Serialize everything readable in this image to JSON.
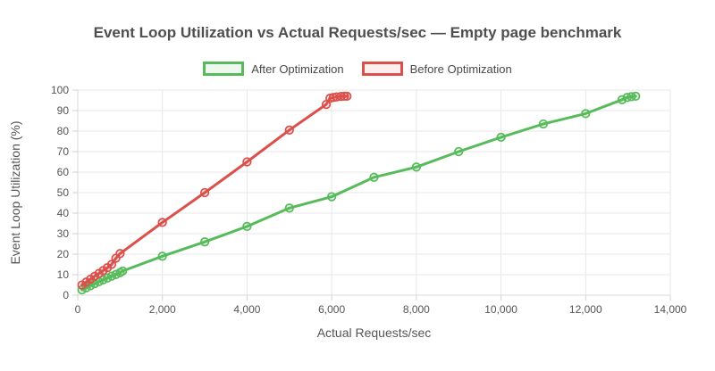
{
  "chart_data": {
    "type": "line",
    "title": "Event Loop Utilization vs Actual Requests/sec — Empty page benchmark",
    "xlabel": "Actual Requests/sec",
    "ylabel": "Event Loop Utilization (%)",
    "xlim": [
      0,
      14000
    ],
    "ylim": [
      0,
      100
    ],
    "x_ticks": [
      0,
      2000,
      4000,
      6000,
      8000,
      10000,
      12000,
      14000
    ],
    "x_tick_labels": [
      "0",
      "2,000",
      "4,000",
      "6,000",
      "8,000",
      "10,000",
      "12,000",
      "14,000"
    ],
    "y_ticks": [
      0,
      10,
      20,
      30,
      40,
      50,
      60,
      70,
      80,
      90,
      100
    ],
    "y_tick_labels": [
      "0",
      "10",
      "20",
      "30",
      "40",
      "50",
      "60",
      "70",
      "80",
      "90",
      "100"
    ],
    "grid": true,
    "legend_position": "top",
    "marker": "circle",
    "grid_color": "#e7e7e7",
    "axis_border_color": "#d9d9d9",
    "series": [
      {
        "name": "After Optimization",
        "color": "#57bb5b",
        "fill_light": "#edf8ee",
        "points": [
          [
            100,
            2.6
          ],
          [
            200,
            3.6
          ],
          [
            300,
            4.6
          ],
          [
            400,
            5.6
          ],
          [
            500,
            6.6
          ],
          [
            600,
            7.5
          ],
          [
            700,
            8.4
          ],
          [
            800,
            9.3
          ],
          [
            900,
            10.1
          ],
          [
            1000,
            11.0
          ],
          [
            1060,
            11.8
          ],
          [
            2000,
            19.0
          ],
          [
            3000,
            26.0
          ],
          [
            4000,
            33.5
          ],
          [
            5000,
            42.5
          ],
          [
            6000,
            48.0
          ],
          [
            7000,
            57.5
          ],
          [
            8000,
            62.5
          ],
          [
            9000,
            70.0
          ],
          [
            10000,
            77.0
          ],
          [
            11000,
            83.5
          ],
          [
            12000,
            88.5
          ],
          [
            12860,
            95.3
          ],
          [
            12980,
            96.4
          ],
          [
            13080,
            96.8
          ],
          [
            13180,
            97.0
          ]
        ]
      },
      {
        "name": "Before Optimization",
        "color": "#db504a",
        "fill_light": "#fcefee",
        "points": [
          [
            100,
            5.0
          ],
          [
            200,
            6.4
          ],
          [
            300,
            7.8
          ],
          [
            400,
            9.2
          ],
          [
            500,
            10.6
          ],
          [
            600,
            12.0
          ],
          [
            700,
            13.4
          ],
          [
            800,
            15.0
          ],
          [
            900,
            18.0
          ],
          [
            1000,
            20.3
          ],
          [
            2000,
            35.5
          ],
          [
            3000,
            50.0
          ],
          [
            4000,
            65.0
          ],
          [
            5000,
            80.5
          ],
          [
            5870,
            93.0
          ],
          [
            5960,
            96.0
          ],
          [
            6040,
            96.4
          ],
          [
            6120,
            96.7
          ],
          [
            6220,
            96.9
          ],
          [
            6300,
            97.0
          ],
          [
            6360,
            97.0
          ]
        ]
      }
    ]
  }
}
